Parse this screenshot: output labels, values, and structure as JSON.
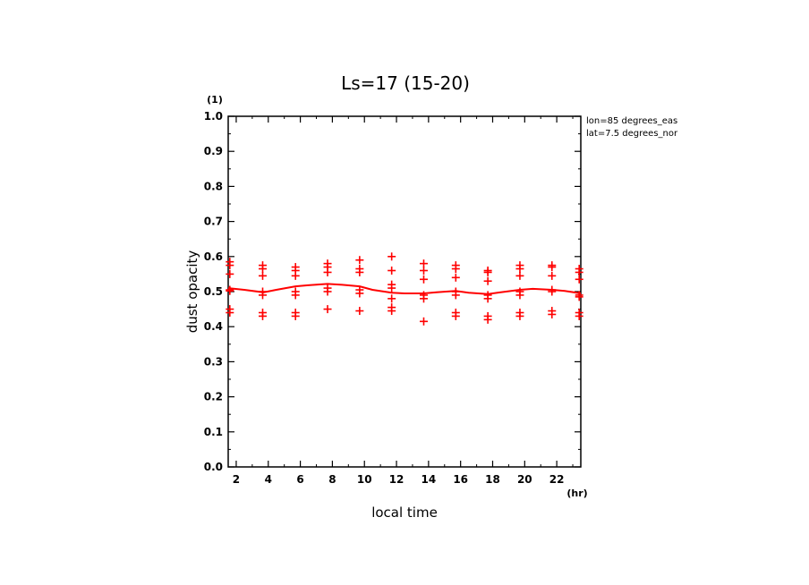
{
  "chart_data": {
    "type": "scatter",
    "title": "Ls=17 (15-20)",
    "xlabel": "local time",
    "ylabel": "dust opacity",
    "x_unit": "(hr)",
    "y_unit": "(1)",
    "annotations": [
      "lon=85 degrees_eas",
      "lat=7.5 degrees_nor"
    ],
    "xlim": [
      1.5,
      23.5
    ],
    "ylim": [
      0.0,
      1.0
    ],
    "x_ticks": [
      2,
      4,
      6,
      8,
      10,
      12,
      14,
      16,
      18,
      20,
      22
    ],
    "x_tick_labels": [
      "2",
      "4",
      "6",
      "8",
      "10",
      "12",
      "14",
      "16",
      "18",
      "20",
      "22"
    ],
    "y_ticks": [
      0.0,
      0.1,
      0.2,
      0.3,
      0.4,
      0.5,
      0.6,
      0.7,
      0.8,
      0.9,
      1.0
    ],
    "y_tick_labels": [
      "0.0",
      "0.1",
      "0.2",
      "0.3",
      "0.4",
      "0.5",
      "0.6",
      "0.7",
      "0.8",
      "0.9",
      "1.0"
    ],
    "grid": false,
    "color": "#ff0000",
    "line": {
      "x": [
        1.5,
        2.5,
        3.7,
        4.5,
        5.7,
        6.5,
        7.7,
        8.5,
        9.7,
        10.5,
        11.7,
        12.5,
        13.7,
        14.5,
        15.7,
        16.5,
        17.7,
        18.5,
        19.7,
        20.5,
        21.7,
        22.5,
        23.5
      ],
      "y": [
        0.51,
        0.505,
        0.498,
        0.505,
        0.515,
        0.518,
        0.522,
        0.52,
        0.515,
        0.505,
        0.497,
        0.495,
        0.495,
        0.498,
        0.502,
        0.497,
        0.493,
        0.498,
        0.505,
        0.508,
        0.505,
        0.502,
        0.495
      ]
    },
    "points": [
      {
        "x": 1.6,
        "y": 0.585
      },
      {
        "x": 1.6,
        "y": 0.575
      },
      {
        "x": 1.6,
        "y": 0.55
      },
      {
        "x": 1.6,
        "y": 0.505
      },
      {
        "x": 1.6,
        "y": 0.502
      },
      {
        "x": 1.6,
        "y": 0.45
      },
      {
        "x": 1.6,
        "y": 0.44
      },
      {
        "x": 3.65,
        "y": 0.575
      },
      {
        "x": 3.65,
        "y": 0.565
      },
      {
        "x": 3.65,
        "y": 0.545
      },
      {
        "x": 3.65,
        "y": 0.5
      },
      {
        "x": 3.65,
        "y": 0.49
      },
      {
        "x": 3.65,
        "y": 0.44
      },
      {
        "x": 3.65,
        "y": 0.43
      },
      {
        "x": 5.7,
        "y": 0.57
      },
      {
        "x": 5.7,
        "y": 0.56
      },
      {
        "x": 5.7,
        "y": 0.545
      },
      {
        "x": 5.7,
        "y": 0.5
      },
      {
        "x": 5.7,
        "y": 0.49
      },
      {
        "x": 5.7,
        "y": 0.44
      },
      {
        "x": 5.7,
        "y": 0.43
      },
      {
        "x": 7.7,
        "y": 0.58
      },
      {
        "x": 7.7,
        "y": 0.57
      },
      {
        "x": 7.7,
        "y": 0.555
      },
      {
        "x": 7.7,
        "y": 0.51
      },
      {
        "x": 7.7,
        "y": 0.5
      },
      {
        "x": 7.7,
        "y": 0.45
      },
      {
        "x": 9.7,
        "y": 0.59
      },
      {
        "x": 9.7,
        "y": 0.565
      },
      {
        "x": 9.7,
        "y": 0.555
      },
      {
        "x": 9.7,
        "y": 0.505
      },
      {
        "x": 9.7,
        "y": 0.495
      },
      {
        "x": 9.7,
        "y": 0.445
      },
      {
        "x": 11.7,
        "y": 0.6
      },
      {
        "x": 11.7,
        "y": 0.56
      },
      {
        "x": 11.7,
        "y": 0.52
      },
      {
        "x": 11.7,
        "y": 0.51
      },
      {
        "x": 11.7,
        "y": 0.48
      },
      {
        "x": 11.7,
        "y": 0.455
      },
      {
        "x": 11.7,
        "y": 0.445
      },
      {
        "x": 13.7,
        "y": 0.58
      },
      {
        "x": 13.7,
        "y": 0.56
      },
      {
        "x": 13.7,
        "y": 0.535
      },
      {
        "x": 13.7,
        "y": 0.49
      },
      {
        "x": 13.7,
        "y": 0.48
      },
      {
        "x": 13.7,
        "y": 0.415
      },
      {
        "x": 15.7,
        "y": 0.575
      },
      {
        "x": 15.7,
        "y": 0.565
      },
      {
        "x": 15.7,
        "y": 0.54
      },
      {
        "x": 15.7,
        "y": 0.5
      },
      {
        "x": 15.7,
        "y": 0.49
      },
      {
        "x": 15.7,
        "y": 0.44
      },
      {
        "x": 15.7,
        "y": 0.43
      },
      {
        "x": 17.7,
        "y": 0.56
      },
      {
        "x": 17.7,
        "y": 0.555
      },
      {
        "x": 17.7,
        "y": 0.53
      },
      {
        "x": 17.7,
        "y": 0.49
      },
      {
        "x": 17.7,
        "y": 0.48
      },
      {
        "x": 17.7,
        "y": 0.43
      },
      {
        "x": 17.7,
        "y": 0.42
      },
      {
        "x": 19.7,
        "y": 0.575
      },
      {
        "x": 19.7,
        "y": 0.565
      },
      {
        "x": 19.7,
        "y": 0.545
      },
      {
        "x": 19.7,
        "y": 0.5
      },
      {
        "x": 19.7,
        "y": 0.49
      },
      {
        "x": 19.7,
        "y": 0.44
      },
      {
        "x": 19.7,
        "y": 0.43
      },
      {
        "x": 21.7,
        "y": 0.575
      },
      {
        "x": 21.7,
        "y": 0.57
      },
      {
        "x": 21.7,
        "y": 0.545
      },
      {
        "x": 21.7,
        "y": 0.505
      },
      {
        "x": 21.7,
        "y": 0.5
      },
      {
        "x": 21.7,
        "y": 0.445
      },
      {
        "x": 21.7,
        "y": 0.435
      },
      {
        "x": 23.4,
        "y": 0.565
      },
      {
        "x": 23.4,
        "y": 0.555
      },
      {
        "x": 23.4,
        "y": 0.535
      },
      {
        "x": 23.4,
        "y": 0.49
      },
      {
        "x": 23.4,
        "y": 0.485
      },
      {
        "x": 23.4,
        "y": 0.44
      },
      {
        "x": 23.4,
        "y": 0.43
      }
    ]
  }
}
